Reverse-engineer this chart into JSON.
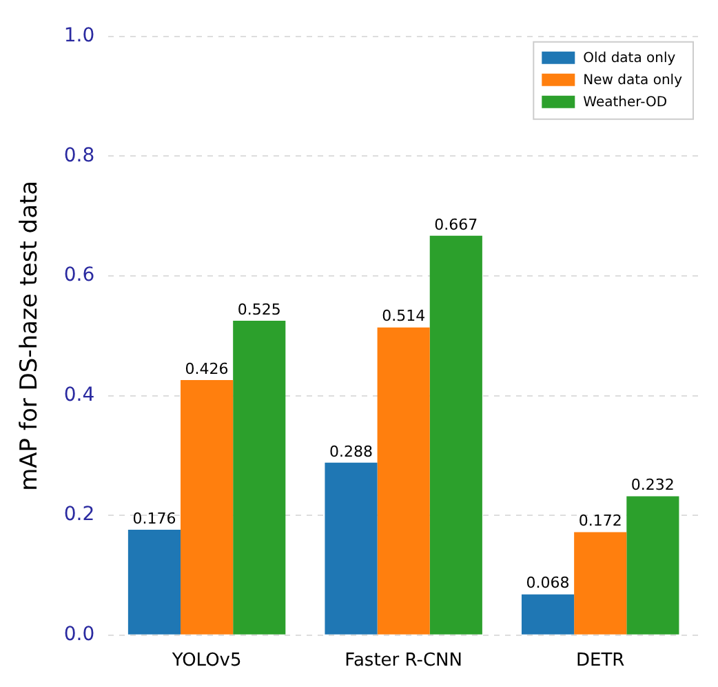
{
  "chart_data": {
    "type": "bar",
    "ylabel": "mAP for DS-haze test data",
    "categories": [
      "YOLOv5",
      "Faster R-CNN",
      "DETR"
    ],
    "series": [
      {
        "name": "Old data only",
        "color": "#1f77b4",
        "values": [
          0.176,
          0.288,
          0.068
        ]
      },
      {
        "name": "New data only",
        "color": "#ff7f0e",
        "values": [
          0.426,
          0.514,
          0.172
        ]
      },
      {
        "name": "Weather-OD",
        "color": "#2ca02c",
        "values": [
          0.525,
          0.667,
          0.232
        ]
      }
    ],
    "ylim": [
      0,
      1.0
    ],
    "yticks": [
      {
        "value": 0,
        "label": "0.0"
      },
      {
        "value": 0.2,
        "label": "0.2"
      },
      {
        "value": 0.4,
        "label": "0.4"
      },
      {
        "value": 0.6,
        "label": "0.6"
      },
      {
        "value": 0.8,
        "label": "0.8"
      },
      {
        "value": 1.0,
        "label": "1.0"
      }
    ],
    "grid": "y",
    "legend": "top right",
    "data_labels": true
  }
}
